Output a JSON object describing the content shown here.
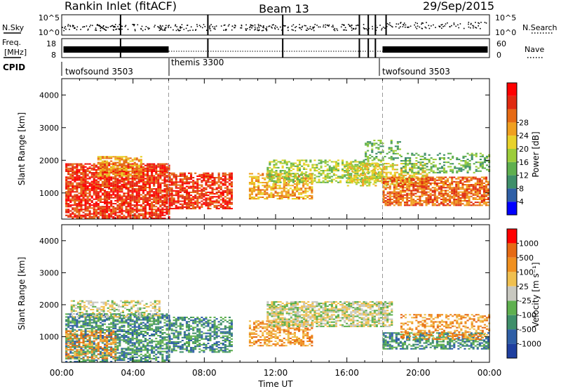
{
  "title": {
    "left": "Rankin Inlet (fitACF)",
    "center": "Beam 13",
    "right": "29/Sep/2015"
  },
  "noise_panel": {
    "left_label": "N.Sky",
    "right_label": "N.Search",
    "left_ticks": [
      "10^5",
      "10^0"
    ],
    "right_ticks": [
      "10^5",
      "10^0"
    ]
  },
  "freq_panel": {
    "left_label_1": "Freq.",
    "left_label_2": "[MHz]",
    "right_label": "Nave",
    "left_ticks": [
      "18",
      "8"
    ],
    "right_ticks": [
      "60",
      "0"
    ]
  },
  "cpid": {
    "label": "CPID",
    "segments": [
      {
        "name": "twofsound 3503",
        "start_hour": 0,
        "end_hour": 6
      },
      {
        "name": "themis 3300",
        "start_hour": 6,
        "end_hour": 18
      },
      {
        "name": "twofsound 3503",
        "start_hour": 18,
        "end_hour": 24
      }
    ]
  },
  "x_axis": {
    "label": "Time UT",
    "ticks": [
      "00:00",
      "04:00",
      "08:00",
      "12:00",
      "16:00",
      "20:00",
      "00:00"
    ]
  },
  "chart_data": [
    {
      "type": "heatmap",
      "name": "power",
      "ylabel": "Slant Range [km]",
      "yticks": [
        "1000",
        "2000",
        "3000",
        "4000"
      ],
      "xlim": [
        0,
        24
      ],
      "ylim": [
        200,
        4500
      ],
      "colorbar": {
        "label": "Power [dB]",
        "ticks": [
          "4",
          "8",
          "12",
          "16",
          "20",
          "24",
          "28"
        ],
        "colors": [
          "#0000ff",
          "#2f5fa6",
          "#3f8f6a",
          "#5fb04f",
          "#9ccd3a",
          "#e8d22a",
          "#f0a020",
          "#e66a14",
          "#e02a10",
          "#ff0000"
        ]
      },
      "regions": [
        {
          "t0": 0.2,
          "t1": 6.0,
          "r0": 200,
          "r1": 1900,
          "level": 8,
          "density": 0.8
        },
        {
          "t0": 2.0,
          "t1": 4.5,
          "r0": 1500,
          "r1": 2100,
          "level": 6,
          "density": 0.6
        },
        {
          "t0": 6.0,
          "t1": 9.5,
          "r0": 500,
          "r1": 1600,
          "level": 8,
          "density": 0.7
        },
        {
          "t0": 10.5,
          "t1": 14.0,
          "r0": 800,
          "r1": 1600,
          "level": 6,
          "density": 0.6
        },
        {
          "t0": 11.5,
          "t1": 18.0,
          "r0": 1300,
          "r1": 2000,
          "level": 4,
          "density": 0.55
        },
        {
          "t0": 16.0,
          "t1": 20.5,
          "r0": 1200,
          "r1": 1900,
          "level": 5,
          "density": 0.55
        },
        {
          "t0": 18.0,
          "t1": 24.0,
          "r0": 600,
          "r1": 1500,
          "level": 7,
          "density": 0.75
        },
        {
          "t0": 19.0,
          "t1": 24.0,
          "r0": 1600,
          "r1": 2200,
          "level": 3,
          "density": 0.4
        },
        {
          "t0": 17.0,
          "t1": 19.0,
          "r0": 2000,
          "r1": 2600,
          "level": 3,
          "density": 0.3
        }
      ]
    },
    {
      "type": "heatmap",
      "name": "velocity",
      "ylabel": "Slant Range [km]",
      "yticks": [
        "1000",
        "2000",
        "3000",
        "4000"
      ],
      "xlim": [
        0,
        24
      ],
      "ylim": [
        200,
        4500
      ],
      "colorbar": {
        "label": "Velocity [m s⁻¹]",
        "ticks": [
          "1000",
          "500",
          "100",
          "25",
          "-25",
          "-100",
          "-500",
          "-1000"
        ],
        "colors": [
          "#1f3f9f",
          "#2f5fa6",
          "#3f8f6a",
          "#5fb04f",
          "#c8c8c0",
          "#f0c050",
          "#f09020",
          "#e66a14",
          "#ff0000"
        ]
      },
      "regions": [
        {
          "t0": 0.2,
          "t1": 6.0,
          "r0": 200,
          "r1": 1700,
          "level": 2,
          "density": 0.65
        },
        {
          "t0": 0.5,
          "t1": 5.5,
          "r0": 1600,
          "r1": 2100,
          "level": 4,
          "density": 0.5
        },
        {
          "t0": 0.2,
          "t1": 3.0,
          "r0": 300,
          "r1": 1200,
          "level": 6,
          "density": 0.45
        },
        {
          "t0": 6.0,
          "t1": 9.5,
          "r0": 500,
          "r1": 1600,
          "level": 2,
          "density": 0.6
        },
        {
          "t0": 10.5,
          "t1": 14.0,
          "r0": 700,
          "r1": 1500,
          "level": 6,
          "density": 0.55
        },
        {
          "t0": 11.5,
          "t1": 18.5,
          "r0": 1300,
          "r1": 2100,
          "level": 4,
          "density": 0.7
        },
        {
          "t0": 18.0,
          "t1": 24.0,
          "r0": 600,
          "r1": 1100,
          "level": 2,
          "density": 0.6
        },
        {
          "t0": 19.0,
          "t1": 24.0,
          "r0": 900,
          "r1": 1700,
          "level": 6,
          "density": 0.45
        }
      ]
    }
  ]
}
